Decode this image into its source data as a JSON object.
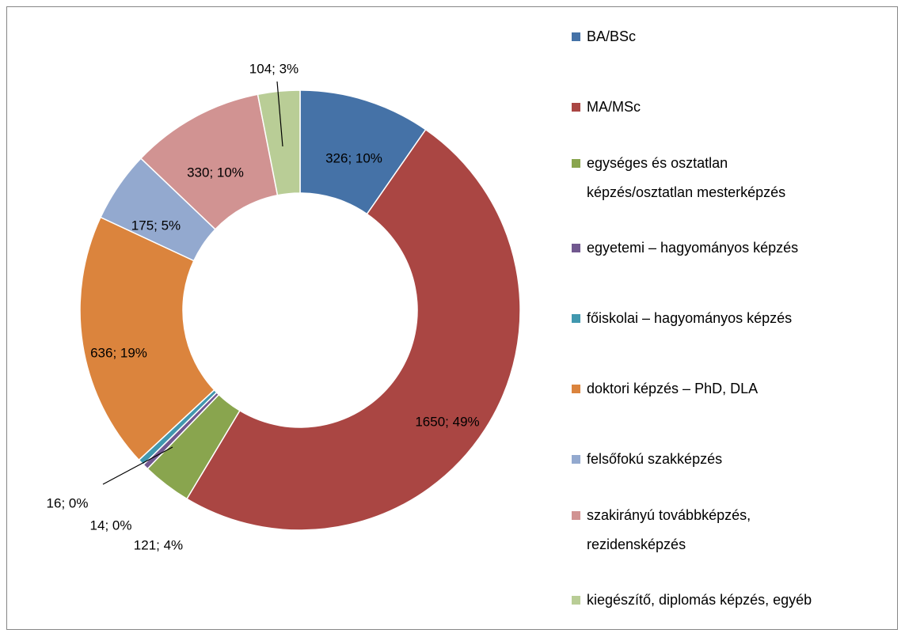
{
  "chart_data": {
    "type": "donut",
    "categories": [
      "BA/BSc",
      "MA/MSc",
      "egységes és osztatlan\nképzés/osztatlan mesterképzés",
      "egyetemi – hagyományos képzés",
      "főiskolai – hagyományos képzés",
      "doktori képzés – PhD, DLA",
      "felsőfokú szakképzés",
      "szakirányú továbbképzés,\nrezidensképzés",
      "kiegészítő, diplomás képzés, egyéb"
    ],
    "values": [
      326,
      1650,
      121,
      14,
      16,
      636,
      175,
      330,
      104
    ],
    "value_labels": [
      "326; 10%",
      "1650; 49%",
      "121; 4%",
      "14; 0%",
      "16; 0%",
      "636; 19%",
      "175; 5%",
      "330; 10%",
      "104; 3%"
    ],
    "colors": [
      "#4572a7",
      "#aa4643",
      "#89a54e",
      "#71588f",
      "#4198af",
      "#db843d",
      "#93a9cf",
      "#d19392",
      "#b9cd96"
    ],
    "legend": "right"
  }
}
